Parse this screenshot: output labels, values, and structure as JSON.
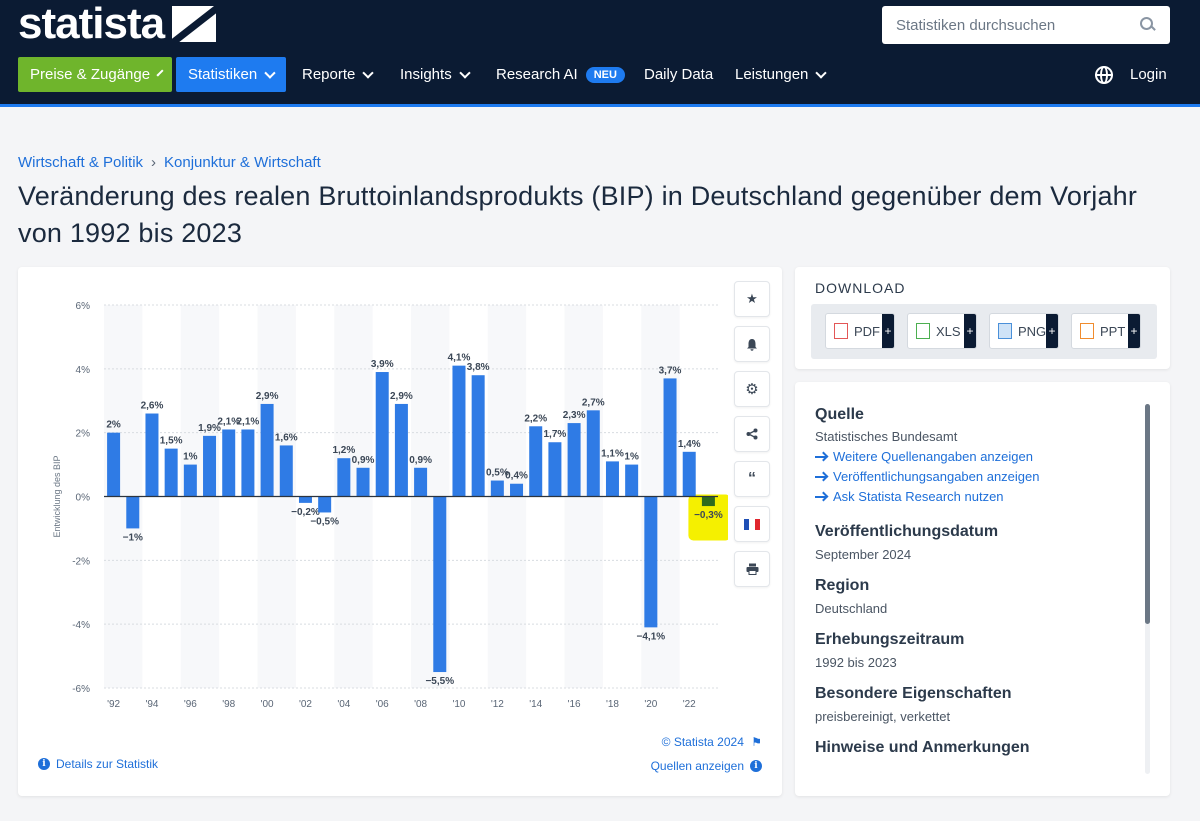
{
  "header": {
    "logo_text": "statista",
    "search_placeholder": "Statistiken durchsuchen",
    "nav": [
      {
        "label": "Preise & Zugänge",
        "style": "green"
      },
      {
        "label": "Statistiken",
        "style": "blue"
      },
      {
        "label": "Reporte"
      },
      {
        "label": "Insights"
      },
      {
        "label": "Research AI",
        "badge": "NEU"
      },
      {
        "label": "Daily Data"
      },
      {
        "label": "Leistungen"
      }
    ],
    "login": "Login"
  },
  "breadcrumb": [
    "Wirtschaft & Politik",
    "Konjunktur & Wirtschaft"
  ],
  "page_title": "Veränderung des realen Bruttoinlandsprodukts (BIP) in Deutschland gegenüber dem Vorjahr von 1992 bis 2023",
  "chart_card": {
    "copyright": "© Statista 2024",
    "quellen_link": "Quellen anzeigen",
    "details_link": "Details zur Statistik",
    "tools": [
      "star-icon",
      "bell-icon",
      "gear-icon",
      "share-icon",
      "quote-icon",
      "flag-icon",
      "print-icon"
    ]
  },
  "chart_data": {
    "type": "bar",
    "ylabel": "Entwicklung des BIP",
    "ylim": [
      -6,
      6
    ],
    "yticks": [
      6,
      4,
      2,
      0,
      -2,
      -4,
      -6
    ],
    "ytick_labels": [
      "6%",
      "4%",
      "2%",
      "0%",
      "-2%",
      "-4%",
      "-6%"
    ],
    "categories": [
      "1992",
      "1993",
      "1994",
      "1995",
      "1996",
      "1997",
      "1998",
      "1999",
      "2000",
      "2001",
      "2002",
      "2003",
      "2004",
      "2005",
      "2006",
      "2007",
      "2008",
      "2009",
      "2010",
      "2011",
      "2012",
      "2013",
      "2014",
      "2015",
      "2016",
      "2017",
      "2018",
      "2019",
      "2020",
      "2021",
      "2022",
      "2023"
    ],
    "values": [
      2,
      -1,
      2.6,
      1.5,
      1,
      1.9,
      2.1,
      2.1,
      2.9,
      1.6,
      -0.2,
      -0.5,
      1.2,
      0.9,
      3.9,
      2.9,
      0.9,
      -5.5,
      4.1,
      3.8,
      0.5,
      0.4,
      2.2,
      1.7,
      2.3,
      2.7,
      1.1,
      1,
      -4.1,
      3.7,
      1.4,
      -0.3
    ],
    "value_labels": [
      "2%",
      "−1%",
      "2,6%",
      "1,5%",
      "1%",
      "1,9%",
      "2,1%",
      "2,1%",
      "2,9%",
      "1,6%",
      "−0,2%",
      "−0,5%",
      "1,2%",
      "0,9%",
      "3,9%",
      "2,9%",
      "0,9%",
      "−5,5%",
      "4,1%",
      "3,8%",
      "0,5%",
      "0,4%",
      "2,2%",
      "1,7%",
      "2,3%",
      "2,7%",
      "1,1%",
      "1%",
      "−4,1%",
      "3,7%",
      "1,4%",
      "−0,3%"
    ],
    "xtick_labels": [
      "'92",
      "'94",
      "'96",
      "'98",
      "'00",
      "'02",
      "'04",
      "'06",
      "'08",
      "'10",
      "'12",
      "'14",
      "'16",
      "'18",
      "'20",
      "'22"
    ],
    "bar_color": "#2f7be5",
    "highlight_index": 31,
    "highlight_color": "#f5f000",
    "highlight_bar_color": "#2e6b1d",
    "grid": true
  },
  "download": {
    "title": "DOWNLOAD",
    "formats": [
      "PDF",
      "XLS",
      "PNG",
      "PPT"
    ]
  },
  "info": {
    "quelle_h": "Quelle",
    "quelle_v": "Statistisches Bundesamt",
    "links": [
      "Weitere Quellenangaben anzeigen",
      "Veröffentlichungsangaben anzeigen",
      "Ask Statista Research nutzen"
    ],
    "datum_h": "Veröffentlichungsdatum",
    "datum_v": "September 2024",
    "region_h": "Region",
    "region_v": "Deutschland",
    "zeitraum_h": "Erhebungszeitraum",
    "zeitraum_v": "1992 bis 2023",
    "eigenschaften_h": "Besondere Eigenschaften",
    "eigenschaften_v": "preisbereinigt, verkettet",
    "hinweise_h": "Hinweise und Anmerkungen"
  }
}
